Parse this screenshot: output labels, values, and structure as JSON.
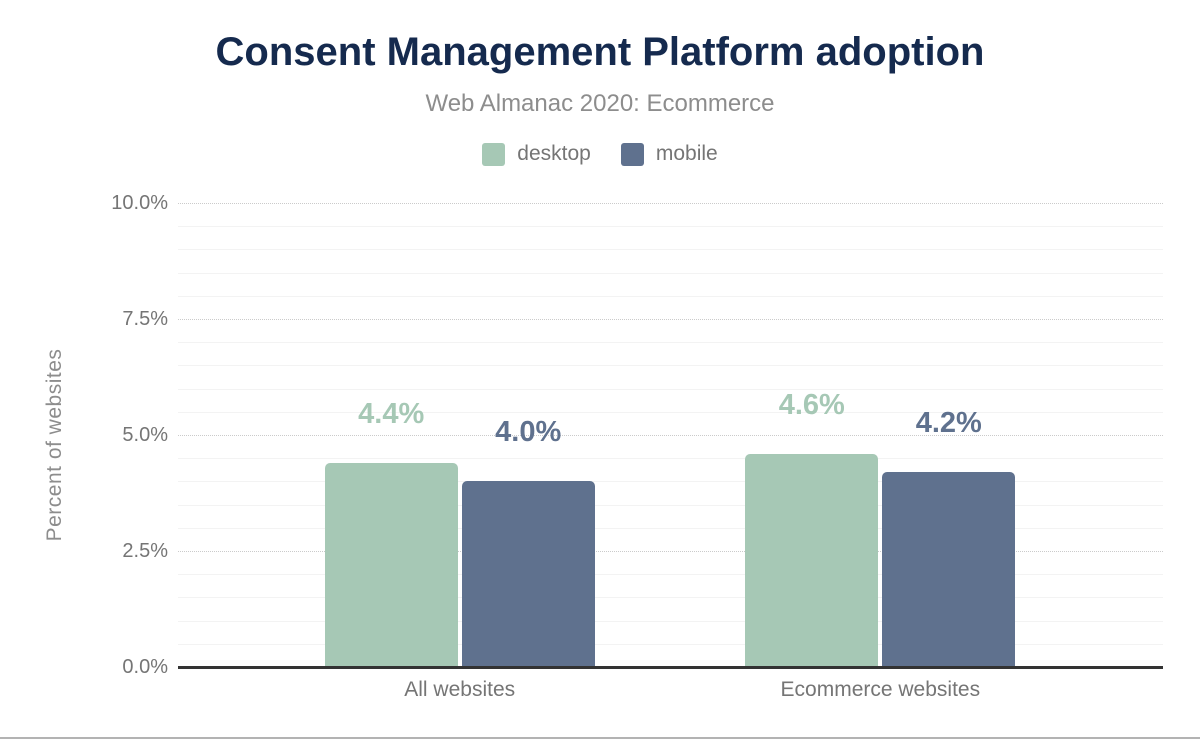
{
  "page": {
    "title": "Consent Management Platform adoption",
    "subtitle": "Web Almanac 2020: Ecommerce"
  },
  "chart_data": {
    "type": "bar",
    "title": "Consent Management Platform adoption",
    "subtitle": "Web Almanac 2020: Ecommerce",
    "categories": [
      "All websites",
      "Ecommerce websites"
    ],
    "series": [
      {
        "name": "desktop",
        "values": [
          4.4,
          4.6
        ],
        "data_labels": [
          "4.4%",
          "4.6%"
        ],
        "color": "#a6c8b5"
      },
      {
        "name": "mobile",
        "values": [
          4.0,
          4.2
        ],
        "data_labels": [
          "4.0%",
          "4.2%"
        ],
        "color": "#5f718e"
      }
    ],
    "xlabel": "",
    "ylabel": "Percent of websites",
    "ylim": [
      0,
      10
    ],
    "yticks": [
      0,
      2.5,
      5,
      7.5,
      10
    ],
    "ytick_labels": [
      "0.0%",
      "2.5%",
      "5.0%",
      "7.5%",
      "10.0%"
    ],
    "minor_grid_step": 0.5,
    "grid": true,
    "legend_position": "top"
  },
  "colors": {
    "title": "#152a4e",
    "subtitle": "#8d8d8d",
    "axis_text": "#757575",
    "axis_line": "#333333",
    "major_grid": "#cbcbcb",
    "minor_grid": "#f3f3f3",
    "desktop": "#a6c8b5",
    "mobile": "#5f718e"
  }
}
